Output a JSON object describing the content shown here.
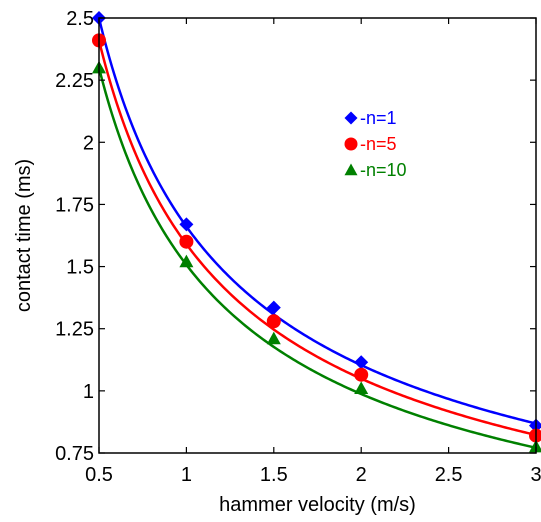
{
  "chart_data": {
    "type": "scatter",
    "xlabel": "hammer velocity (m/s)",
    "ylabel": "contact time (ms)",
    "xlim": [
      0.5,
      3
    ],
    "ylim": [
      0.75,
      2.5
    ],
    "grid": false,
    "legend_position": "top-right",
    "xticks": [
      0.5,
      1,
      1.5,
      2,
      2.5,
      3
    ],
    "xtick_labels": [
      "0.5",
      "1",
      "1.5",
      "2",
      "2.5",
      "3"
    ],
    "yticks": [
      0.75,
      1,
      1.25,
      1.5,
      1.75,
      2,
      2.25,
      2.5
    ],
    "ytick_labels": [
      "0.75",
      "1",
      "1.25",
      "1.5",
      "1.75",
      "2",
      "2.25",
      "2.5"
    ],
    "series": [
      {
        "name": "-n=1",
        "marker": "diamond",
        "color": "#0000ff",
        "x": [
          0.5,
          1,
          1.5,
          2,
          3
        ],
        "y": [
          2.5,
          1.67,
          1.335,
          1.115,
          0.86
        ],
        "fit_coefficient": 2.5,
        "fit_exponent": -0.59
      },
      {
        "name": "-n=5",
        "marker": "circle",
        "color": "#ff0000",
        "x": [
          0.5,
          1,
          1.5,
          2,
          3
        ],
        "y": [
          2.41,
          1.6,
          1.28,
          1.065,
          0.82
        ],
        "fit_coefficient": 2.41,
        "fit_exponent": -0.6
      },
      {
        "name": "-n=10",
        "marker": "triangle",
        "color": "#008000",
        "x": [
          0.5,
          1,
          1.5,
          2,
          3
        ],
        "y": [
          2.3,
          1.52,
          1.21,
          1.01,
          0.775
        ],
        "fit_coefficient": 2.3,
        "fit_exponent": -0.61
      }
    ]
  }
}
